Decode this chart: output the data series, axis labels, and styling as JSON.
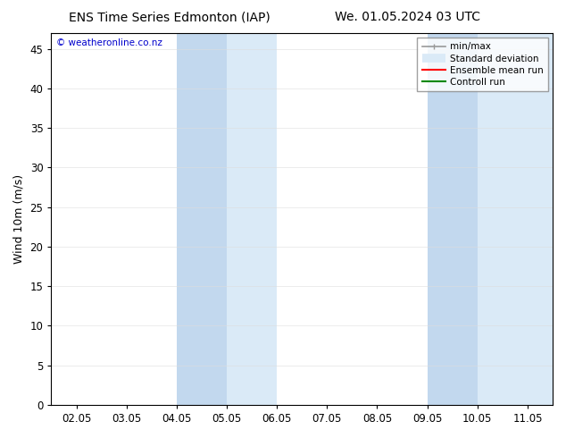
{
  "title_left": "ENS Time Series Edmonton (IAP)",
  "title_right": "We. 01.05.2024 03 UTC",
  "ylabel": "Wind 10m (m/s)",
  "watermark": "© weatheronline.co.nz",
  "xtick_labels": [
    "02.05",
    "03.05",
    "04.05",
    "05.05",
    "06.05",
    "07.05",
    "08.05",
    "09.05",
    "10.05",
    "11.05"
  ],
  "xtick_positions": [
    0,
    1,
    2,
    3,
    4,
    5,
    6,
    7,
    8,
    9
  ],
  "ylim": [
    0,
    47
  ],
  "ytick_positions": [
    0,
    5,
    10,
    15,
    20,
    25,
    30,
    35,
    40,
    45
  ],
  "xlim": [
    -0.5,
    9.5
  ],
  "bg_color": "#ffffff",
  "plot_bg_color": "#ffffff",
  "watermark_color": "#0000cc",
  "title_fontsize": 10,
  "axis_label_fontsize": 9,
  "tick_fontsize": 8.5,
  "shaded_outer_color": "#daeaf7",
  "shaded_inner_color": "#c2d8ee",
  "band1_outer_start": 2,
  "band1_outer_end": 4,
  "band1_inner_start": 2,
  "band1_inner_end": 3,
  "band2_outer_start": 7,
  "band2_outer_end": 9.5,
  "band2_inner_start": 7,
  "band2_inner_end": 8
}
